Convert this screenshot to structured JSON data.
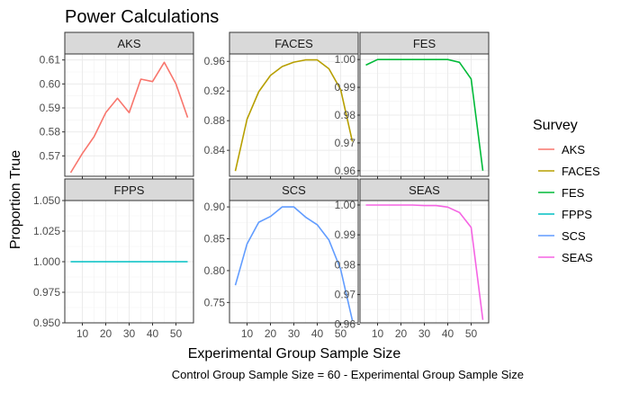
{
  "chart_data": {
    "type": "line",
    "title": "Power Calculations",
    "xlabel": "Experimental Group Sample Size",
    "ylabel": "Proportion True",
    "caption": "Control Group Sample Size = 60 - Experimental Group Sample Size",
    "legend": {
      "title": "Survey",
      "position": "right"
    },
    "x": [
      5,
      10,
      15,
      20,
      25,
      30,
      35,
      40,
      45,
      50,
      55
    ],
    "xlim": [
      2.5,
      57.5
    ],
    "xticks": [
      10,
      20,
      30,
      40,
      50
    ],
    "xtick_labels": [
      "10",
      "20",
      "30",
      "40",
      "50"
    ],
    "grid": true,
    "facet_layout": {
      "rows": 2,
      "cols": 3
    },
    "series": [
      {
        "name": "AKS",
        "color": "#F8766D",
        "values": [
          0.563,
          0.571,
          0.578,
          0.588,
          0.594,
          0.588,
          0.602,
          0.601,
          0.609,
          0.6,
          0.586
        ],
        "ylim": [
          0.5615,
          0.6125
        ],
        "yticks": [
          0.57,
          0.58,
          0.59,
          0.6,
          0.61
        ],
        "ytick_labels": [
          "0.57",
          "0.58",
          "0.59",
          "0.60",
          "0.61"
        ]
      },
      {
        "name": "FACES",
        "color": "#B79F00",
        "values": [
          0.812,
          0.882,
          0.919,
          0.941,
          0.953,
          0.959,
          0.962,
          0.962,
          0.95,
          0.922,
          0.852
        ],
        "ylim": [
          0.805,
          0.97
        ],
        "yticks": [
          0.84,
          0.88,
          0.92,
          0.96
        ],
        "ytick_labels": [
          "0.84",
          "0.88",
          "0.92",
          "0.96"
        ]
      },
      {
        "name": "FES",
        "color": "#00BA38",
        "values": [
          0.998,
          1.0,
          1.0,
          1.0,
          1.0,
          1.0,
          1.0,
          1.0,
          0.999,
          0.993,
          0.96
        ],
        "ylim": [
          0.958,
          1.002
        ],
        "yticks": [
          0.96,
          0.97,
          0.98,
          0.99,
          1.0
        ],
        "ytick_labels": [
          "0.96",
          "0.97",
          "0.98",
          "0.99",
          "1.00"
        ]
      },
      {
        "name": "FPPS",
        "color": "#00BFC4",
        "values": [
          1.0,
          1.0,
          1.0,
          1.0,
          1.0,
          1.0,
          1.0,
          1.0,
          1.0,
          1.0,
          1.0
        ],
        "ylim": [
          0.95,
          1.05
        ],
        "yticks": [
          0.95,
          0.975,
          1.0,
          1.025,
          1.05
        ],
        "ytick_labels": [
          "0.950",
          "0.975",
          "1.000",
          "1.025",
          "1.050"
        ]
      },
      {
        "name": "SCS",
        "color": "#619CFF",
        "values": [
          0.777,
          0.842,
          0.876,
          0.885,
          0.9,
          0.9,
          0.884,
          0.872,
          0.848,
          0.802,
          0.722
        ],
        "ylim": [
          0.718,
          0.91
        ],
        "yticks": [
          0.75,
          0.8,
          0.85,
          0.9
        ],
        "ytick_labels": [
          "0.75",
          "0.80",
          "0.85",
          "0.90"
        ]
      },
      {
        "name": "SEAS",
        "color": "#F564E3",
        "values": [
          1.0,
          1.0,
          1.0,
          1.0,
          1.0,
          0.9998,
          0.9998,
          0.9993,
          0.9975,
          0.9925,
          0.9615
        ],
        "ylim": [
          0.9605,
          1.0015
        ],
        "yticks": [
          0.96,
          0.97,
          0.98,
          0.99,
          1.0
        ],
        "ytick_labels": [
          "0.96",
          "0.97",
          "0.98",
          "0.99",
          "1.00"
        ]
      }
    ]
  }
}
